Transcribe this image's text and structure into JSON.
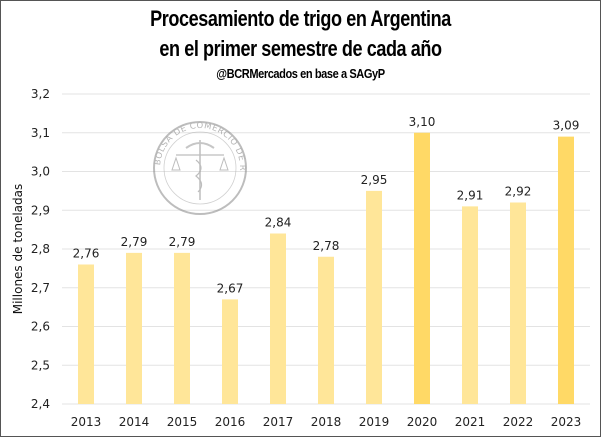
{
  "chart_data": {
    "type": "bar",
    "title": "Procesamiento de trigo en Argentina",
    "subtitle": "en el primer semestre de cada año",
    "source": "@BCRMercados en base a SAGyP",
    "xlabel": "",
    "ylabel": "Millones de toneladas",
    "ylim": [
      2.4,
      3.2
    ],
    "yticks": [
      "2,4",
      "2,5",
      "2,6",
      "2,7",
      "2,8",
      "2,9",
      "3,0",
      "3,1",
      "3,2"
    ],
    "ytick_values": [
      2.4,
      2.5,
      2.6,
      2.7,
      2.8,
      2.9,
      3.0,
      3.1,
      3.2
    ],
    "grid": true,
    "categories": [
      "2013",
      "2014",
      "2015",
      "2016",
      "2017",
      "2018",
      "2019",
      "2020",
      "2021",
      "2022",
      "2023"
    ],
    "values": [
      2.76,
      2.79,
      2.79,
      2.67,
      2.84,
      2.78,
      2.95,
      3.1,
      2.91,
      2.92,
      3.09
    ],
    "data_labels": [
      "2,76",
      "2,79",
      "2,79",
      "2,67",
      "2,84",
      "2,78",
      "2,95",
      "3,10",
      "2,91",
      "2,92",
      "3,09"
    ],
    "highlighted": [
      "2020",
      "2023"
    ],
    "colors": {
      "bar": "#FFE699",
      "highlight": "#FFD966",
      "grid": "#E3E3E3"
    },
    "watermark": "BOLSA DE COMERCIO DE ROSARIO"
  }
}
